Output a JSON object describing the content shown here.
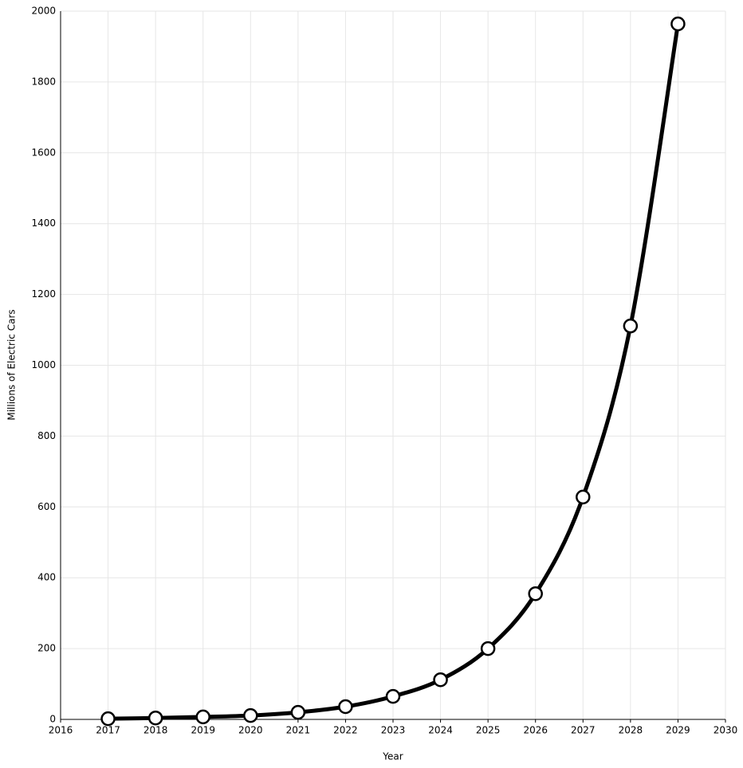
{
  "chart_data": {
    "type": "line",
    "x_label": "Year",
    "y_label": "Millions of Electric Cars",
    "x": [
      2017,
      2018,
      2019,
      2020,
      2021,
      2022,
      2023,
      2024,
      2025,
      2026,
      2027,
      2028,
      2029
    ],
    "series": [
      {
        "color": "#000000",
        "values": [
          2,
          4,
          7,
          11,
          20,
          36,
          65,
          112,
          200,
          355,
          628,
          1111,
          1964
        ]
      }
    ],
    "xlim": [
      2016,
      2030
    ],
    "xticks": [
      2016,
      2017,
      2018,
      2019,
      2020,
      2021,
      2022,
      2023,
      2024,
      2025,
      2026,
      2027,
      2028,
      2029,
      2030
    ],
    "ylim": [
      0,
      2000
    ],
    "yticks": [
      0,
      200,
      400,
      600,
      800,
      1000,
      1200,
      1400,
      1600,
      1800,
      2000
    ],
    "grid": true
  }
}
